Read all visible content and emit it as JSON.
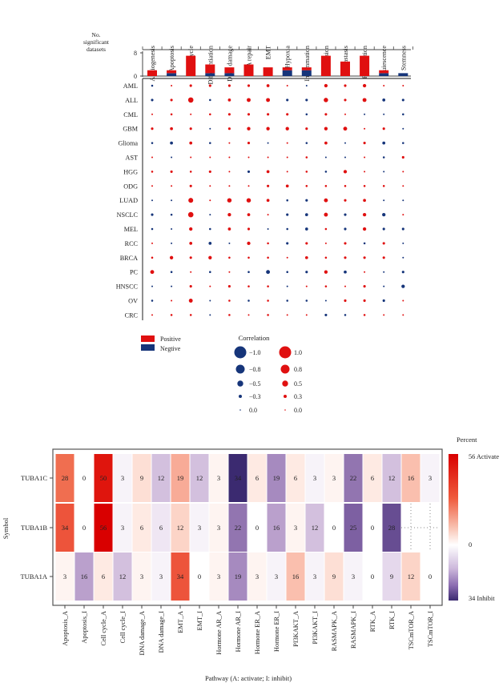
{
  "colors": {
    "positive": "#e01010",
    "negative": "#16357a",
    "activate_max": "#d90000",
    "inhibit_max": "#3b2a70"
  },
  "chart_data": [
    {
      "type": "bar",
      "stacked": true,
      "ylabel": "No. significant datasets",
      "ylim": [
        0,
        8
      ],
      "yticks": [
        "0",
        "8"
      ],
      "categories": [
        "Angiogenesis",
        "Apoptosis",
        "Cell cycle",
        "Differentiation",
        "DNA damage",
        "DNA repair",
        "EMT",
        "Hypoxia",
        "Inflammation",
        "Invasion",
        "Metastasis",
        "Proliferation",
        "Quiescence",
        "Stemness"
      ],
      "series": [
        {
          "name": "Negtive",
          "values": [
            0,
            1,
            0,
            1,
            1,
            0,
            0,
            2,
            2,
            0,
            0,
            0,
            1,
            1
          ]
        },
        {
          "name": "Positive",
          "values": [
            2,
            1,
            7,
            3,
            2,
            4,
            3,
            1,
            1,
            7,
            5,
            7,
            1,
            0
          ]
        }
      ],
      "legend": {
        "items": [
          "Positive",
          "Negtive"
        ],
        "placement": "bottom-left"
      }
    },
    {
      "type": "scatter",
      "subtype": "dot-matrix",
      "columns": [
        "Angiogenesis",
        "Apoptosis",
        "Cell cycle",
        "Differentiation",
        "DNA damage",
        "DNA repair",
        "EMT",
        "Hypoxia",
        "Inflammation",
        "Invasion",
        "Metastasis",
        "Proliferation",
        "Quiescence",
        "Stemness"
      ],
      "rows": [
        "AML",
        "ALL",
        "CML",
        "GBM",
        "Glioma",
        "AST",
        "HGG",
        "ODG",
        "LUAD",
        "NSCLC",
        "MEL",
        "RCC",
        "BRCA",
        "PC",
        "HNSCC",
        "OV",
        "CRC"
      ],
      "values": [
        [
          -0.2,
          0.1,
          0.3,
          0.3,
          0.3,
          0.3,
          0.4,
          0.1,
          -0.1,
          0.5,
          0.3,
          0.5,
          0.1,
          0.1
        ],
        [
          -0.3,
          0.3,
          0.9,
          -0.2,
          0.4,
          0.6,
          0.6,
          -0.3,
          -0.3,
          0.7,
          0.3,
          0.6,
          -0.4,
          -0.3
        ],
        [
          0.1,
          0.2,
          0.1,
          0.2,
          0.3,
          0.3,
          0.3,
          0.3,
          -0.2,
          0.3,
          0.1,
          -0.1,
          -0.1,
          -0.2
        ],
        [
          0.3,
          0.4,
          0.3,
          -0.1,
          0.3,
          0.5,
          0.5,
          0.5,
          0.3,
          0.5,
          0.6,
          0.1,
          0.3,
          -0.1
        ],
        [
          -0.2,
          -0.4,
          0.4,
          -0.2,
          0.1,
          0.3,
          -0.1,
          0.1,
          -0.2,
          0.4,
          -0.1,
          0.3,
          -0.4,
          -0.2
        ],
        [
          0.1,
          -0.1,
          0.1,
          0.1,
          0.1,
          0.1,
          0.1,
          0.1,
          0.2,
          -0.1,
          -0.1,
          0.1,
          -0.2,
          0.3
        ],
        [
          0.2,
          0.3,
          0.2,
          0.3,
          0.1,
          -0.3,
          0.4,
          0.1,
          0.2,
          -0.2,
          0.5,
          0.1,
          -0.1,
          0.1
        ],
        [
          0.1,
          0.1,
          0.3,
          0.1,
          0.1,
          0.1,
          0.3,
          0.4,
          0.2,
          0.2,
          0.2,
          0.2,
          0.2,
          0.1
        ],
        [
          -0.1,
          -0.1,
          0.8,
          0.1,
          0.7,
          0.7,
          0.4,
          -0.2,
          -0.3,
          0.6,
          0.3,
          0.4,
          -0.1,
          -0.1
        ],
        [
          -0.3,
          -0.2,
          0.9,
          -0.1,
          0.5,
          0.4,
          0.1,
          -0.3,
          -0.4,
          0.6,
          -0.3,
          0.5,
          -0.5,
          0.1
        ],
        [
          -0.2,
          -0.1,
          0.5,
          -0.2,
          0.4,
          0.3,
          -0.1,
          -0.2,
          -0.4,
          0.2,
          -0.3,
          0.5,
          -0.3,
          -0.3
        ],
        [
          0.1,
          -0.1,
          0.4,
          -0.4,
          -0.1,
          0.5,
          0.2,
          -0.3,
          0.3,
          0.1,
          0.3,
          -0.2,
          0.3,
          -0.1
        ],
        [
          0.2,
          0.5,
          0.3,
          0.5,
          0.2,
          0.2,
          0.2,
          0.1,
          0.4,
          0.2,
          0.3,
          0.3,
          0.3,
          -0.1
        ],
        [
          0.6,
          -0.2,
          0.1,
          -0.2,
          0.1,
          -0.2,
          -0.6,
          -0.2,
          -0.3,
          0.5,
          -0.4,
          0.1,
          -0.1,
          -0.3
        ],
        [
          -0.1,
          -0.1,
          0.3,
          0.1,
          0.3,
          0.2,
          0.2,
          -0.1,
          0.1,
          0.2,
          0.1,
          0.3,
          -0.1,
          -0.5
        ],
        [
          -0.2,
          0.1,
          0.6,
          -0.1,
          0.2,
          -0.2,
          0.2,
          -0.2,
          -0.2,
          -0.1,
          0.3,
          0.3,
          -0.3,
          0.1
        ],
        [
          0.1,
          0.2,
          0.2,
          -0.1,
          0.2,
          0.1,
          0.2,
          0.1,
          0.1,
          -0.3,
          -0.2,
          0.2,
          0.1,
          0.1
        ]
      ],
      "size_legend": {
        "title": "Correlation",
        "negative": [
          {
            "value": -1.0,
            "label": "−1.0"
          },
          {
            "value": -0.8,
            "label": "−0.8"
          },
          {
            "value": -0.5,
            "label": "−0.5"
          },
          {
            "value": -0.3,
            "label": "−0.3"
          },
          {
            "value": 0.0,
            "label": "0.0"
          }
        ],
        "positive": [
          {
            "value": 1.0,
            "label": "1.0"
          },
          {
            "value": 0.8,
            "label": "0.8"
          },
          {
            "value": 0.5,
            "label": "0.5"
          },
          {
            "value": 0.3,
            "label": "0.3"
          },
          {
            "value": 0.0,
            "label": "0.0"
          }
        ]
      }
    },
    {
      "type": "heatmap",
      "xlabel": "Pathway (A: activate; I: inhibit)",
      "ylabel": "Symbol",
      "columns": [
        "Apoptosis_A",
        "Apoptosis_I",
        "Cell cycle_A",
        "Cell cycle_I",
        "DNA damage_A",
        "DNA damage_I",
        "EMT_A",
        "EMT_I",
        "Hormone AR_A",
        "Hormone AR_I",
        "Hormone ER_A",
        "Hormone ER_I",
        "PI3KAKT_A",
        "PI3KAKT_I",
        "RASMAPK_A",
        "RASMAPK_I",
        "RTK_A",
        "RTK_I",
        "TSCmTOR_A",
        "TSCmTOR_I"
      ],
      "rows": [
        "TUBA1C",
        "TUBA1B",
        "TUBA1A"
      ],
      "values": [
        [
          28,
          0,
          50,
          3,
          9,
          12,
          19,
          12,
          3,
          34,
          6,
          19,
          6,
          3,
          3,
          22,
          6,
          12,
          16,
          3
        ],
        [
          34,
          0,
          56,
          3,
          6,
          6,
          12,
          3,
          3,
          22,
          0,
          16,
          3,
          12,
          0,
          25,
          0,
          28,
          null,
          null
        ],
        [
          3,
          16,
          6,
          12,
          3,
          3,
          34,
          0,
          3,
          19,
          3,
          3,
          16,
          3,
          9,
          3,
          0,
          9,
          12,
          0
        ]
      ],
      "colorbar": {
        "title": "Percent",
        "top_label": "56 Activate",
        "mid_label": "0",
        "bottom_label": "34 Inhibit",
        "activate_max": 56,
        "inhibit_max": 34
      }
    }
  ]
}
